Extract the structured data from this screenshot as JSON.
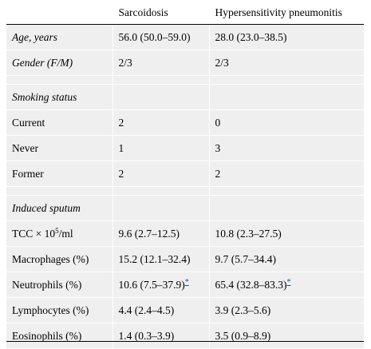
{
  "header": {
    "col1": "",
    "col2": "Sarcoidosis",
    "col3": "Hypersensitivity pneumonitis"
  },
  "rows": {
    "age": {
      "label": "Age, years",
      "sarc": "56.0 (50.0–59.0)",
      "hp": "28.0 (23.0–38.5)"
    },
    "gender": {
      "label": "Gender (F/M)",
      "sarc": "2/3",
      "hp": "2/3"
    },
    "smoking_section": "Smoking status",
    "current": {
      "label": "Current",
      "sarc": "2",
      "hp": "0"
    },
    "never": {
      "label": "Never",
      "sarc": "1",
      "hp": "3"
    },
    "former": {
      "label": "Former",
      "sarc": "2",
      "hp": "2"
    },
    "sputum_section": "Induced sputum",
    "tcc": {
      "label_pre": "TCC × 10",
      "label_sup": "5",
      "label_post": "/ml",
      "sarc": "9.6 (2.7–12.5)",
      "hp": "10.8 (2.3–27.5)"
    },
    "macrophages": {
      "label": "Macrophages (%)",
      "sarc": "15.2 (12.1–32.4)",
      "hp": "9.7 (5.7–34.4)"
    },
    "neutrophils": {
      "label": "Neutrophils (%)",
      "sarc": "10.6 (7.5–37.9)",
      "sarc_mark": "*",
      "hp": "65.4 (32.8–83.3)",
      "hp_mark": "*"
    },
    "lymphocytes": {
      "label": "Lymphocytes (%)",
      "sarc": "4.4 (2.4–4.5)",
      "hp": "3.9 (2.3–5.6)"
    },
    "eosinophils": {
      "label": "Eosinophils (%)",
      "sarc": "1.4 (0.3–3.9)",
      "hp": "3.5 (0.9–8.9)"
    }
  }
}
